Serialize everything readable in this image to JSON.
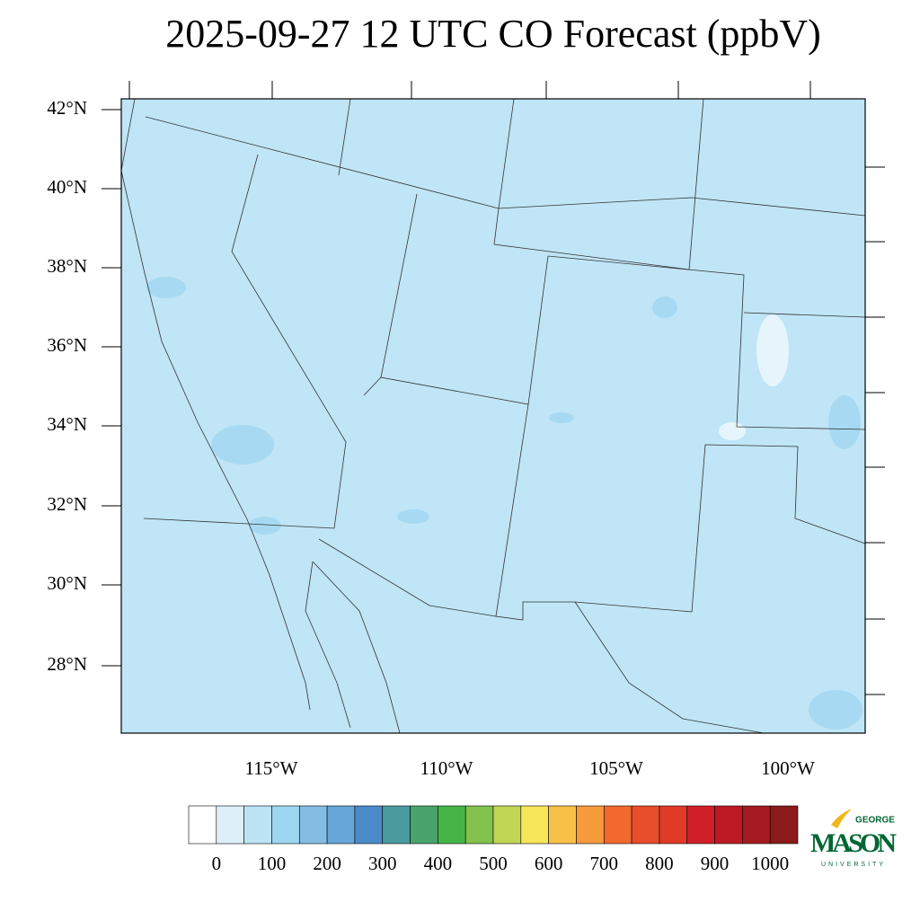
{
  "title": "2025-09-27 12 UTC CO Forecast (ppbV)",
  "map": {
    "fill": "#bfe5f7",
    "lat_labels": [
      "42°N",
      "40°N",
      "38°N",
      "36°N",
      "34°N",
      "32°N",
      "30°N",
      "28°N"
    ],
    "lon_labels": [
      "115°W",
      "110°W",
      "105°W",
      "100°W"
    ]
  },
  "colorbar": {
    "lim": [
      -50,
      1050
    ],
    "ticks": [
      0,
      100,
      200,
      300,
      400,
      500,
      600,
      700,
      800,
      900,
      1000
    ],
    "colors": [
      "#ffffff",
      "#ddf0fa",
      "#bde4f5",
      "#9dd6f0",
      "#84bde3",
      "#66a6d8",
      "#4a8bc8",
      "#4a9b9e",
      "#48a46c",
      "#46b548",
      "#82c24d",
      "#c2d655",
      "#f7e65a",
      "#f7c148",
      "#f79a3c",
      "#f2692e",
      "#e84e2c",
      "#e03a28",
      "#d01f26",
      "#bd1a24",
      "#a61b22",
      "#8b1a1a"
    ]
  },
  "logo": {
    "top": "GEORGE",
    "main": "MASON",
    "bottom": "UNIVERSITY"
  }
}
